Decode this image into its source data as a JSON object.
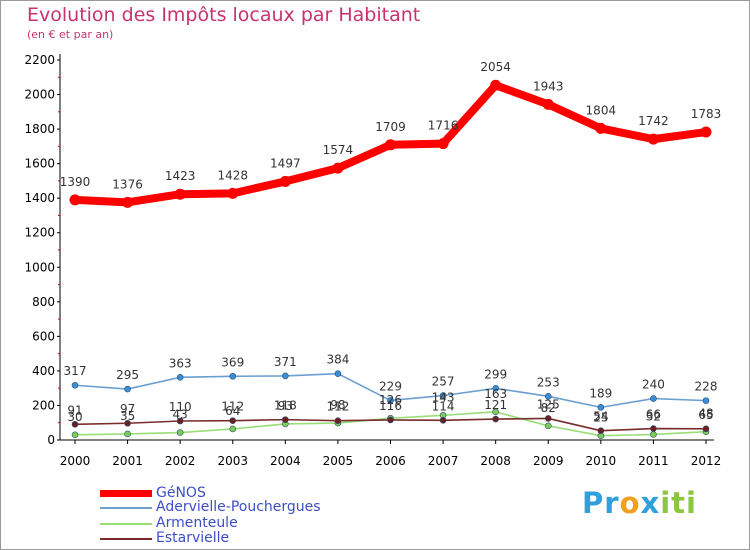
{
  "chart_data": {
    "type": "line",
    "title": "Evolution des Impôts locaux par Habitant",
    "subtitle": "(en € et par an)",
    "xlabel": "",
    "ylabel": "",
    "ylim": [
      0,
      2200
    ],
    "yticks": [
      0,
      200,
      400,
      600,
      800,
      1000,
      1200,
      1400,
      1600,
      1800,
      2000,
      2200
    ],
    "grid": false,
    "legend_position": "bottom-left",
    "categories": [
      "2000",
      "2001",
      "2002",
      "2003",
      "2004",
      "2005",
      "2006",
      "2007",
      "2008",
      "2009",
      "2010",
      "2011",
      "2012"
    ],
    "series": [
      {
        "name": "GéNOS",
        "color": "#ff0000",
        "marker_color": "#ff0000",
        "values": [
          1390,
          1376,
          1423,
          1428,
          1497,
          1574,
          1709,
          1716,
          2054,
          1943,
          1804,
          1742,
          1783
        ],
        "labels": [
          "1390",
          "1376",
          "1423",
          "1428",
          "1497",
          "1574",
          "1709",
          "1716",
          "2054",
          "1943",
          "1804",
          "1742",
          "1783"
        ]
      },
      {
        "name": "Adervielle-Pouchergues",
        "color": "#6a9fd0",
        "marker_color": "#3b8ed6",
        "values": [
          317,
          295,
          363,
          369,
          371,
          384,
          229,
          257,
          299,
          253,
          189,
          240,
          228
        ],
        "labels": [
          "317",
          "295",
          "363",
          "369",
          "371",
          "384",
          "229",
          "257",
          "299",
          "253",
          "189",
          "240",
          "228"
        ]
      },
      {
        "name": "Armenteule",
        "color": "#99dd77",
        "marker_color": "#7ccc55",
        "values": [
          30,
          35,
          43,
          64,
          93,
          98,
          126,
          143,
          163,
          82,
          25,
          32,
          48
        ],
        "labels": [
          "30",
          "35",
          "43",
          "64",
          "93",
          "98",
          "126",
          "143",
          "163",
          "82",
          "25",
          "32",
          "48"
        ]
      },
      {
        "name": "Estarvielle",
        "color": "#7a2c2c",
        "marker_color": "#6e1f1f",
        "values": [
          91,
          97,
          110,
          112,
          118,
          112,
          116,
          114,
          121,
          125,
          54,
          66,
          65
        ],
        "labels": [
          "91",
          "97",
          "110",
          "112",
          "118",
          "112",
          "116",
          "114",
          "121",
          "125",
          "54",
          "66",
          "65"
        ]
      }
    ]
  },
  "logo": {
    "text_parts": [
      "Pr",
      "o",
      "x",
      "iti"
    ],
    "colors": [
      "#2ea1dc",
      "#f0a020",
      "#2ea1dc",
      "#8cc63f"
    ]
  }
}
